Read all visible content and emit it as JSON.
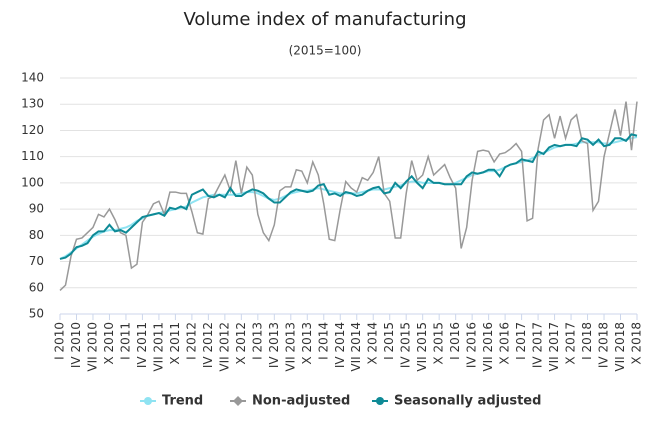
{
  "chart_data": {
    "type": "line",
    "title": "Volume index of manufacturing",
    "subtitle": "(2015=100)",
    "categories": [
      "I 2010",
      null,
      null,
      "IV 2010",
      null,
      null,
      "VII 2010",
      null,
      null,
      "X 2010",
      null,
      null,
      "I 2011",
      null,
      null,
      "IV 2011",
      null,
      null,
      "VII 2011",
      null,
      null,
      "X 2011",
      null,
      null,
      "I 2012",
      null,
      null,
      "IV 2012",
      null,
      null,
      "VII 2012",
      null,
      null,
      "X 2012",
      null,
      null,
      "I 2013",
      null,
      null,
      "IV 2013",
      null,
      null,
      "VII 2013",
      null,
      null,
      "X 2013",
      null,
      null,
      "I 2014",
      null,
      null,
      "IV 2014",
      null,
      null,
      "VII 2014",
      null,
      null,
      "X 2014",
      null,
      null,
      "I 2015",
      null,
      null,
      "IV 2015",
      null,
      null,
      "VII 2015",
      null,
      null,
      "X 2015",
      null,
      null,
      "I 2016",
      null,
      null,
      "IV 2016",
      null,
      null,
      "VII 2016",
      null,
      null,
      "X 2016",
      null,
      null,
      "I 2017",
      null,
      null,
      "IV 2017",
      null,
      null,
      "VII 2017",
      null,
      null,
      "X 2017",
      null,
      null,
      "I 2018",
      null,
      null,
      "IV 2018",
      null,
      null,
      "VII 2018",
      null,
      null,
      "X 2018"
    ],
    "series": [
      {
        "name": "Trend",
        "color": "#8fe3f2",
        "marker": "circle",
        "values": [
          71,
          72,
          73.5,
          75,
          76.5,
          78,
          79.5,
          80.5,
          81.5,
          82,
          82,
          82.5,
          83,
          84,
          85.5,
          86.5,
          87.5,
          88,
          88.5,
          89,
          89.5,
          90,
          90.5,
          91,
          92.5,
          93.5,
          94.5,
          95,
          95.5,
          95.5,
          95.5,
          95.5,
          95.5,
          96,
          96.5,
          96.5,
          96,
          95,
          94,
          93.5,
          94,
          95,
          96,
          96.5,
          97,
          97,
          97.5,
          98,
          97.5,
          97,
          96.5,
          96,
          96,
          96,
          96,
          96.5,
          97,
          97.5,
          97.5,
          97.5,
          98,
          98.5,
          99,
          100,
          100.5,
          100.5,
          100,
          100,
          100,
          100,
          99.5,
          99.5,
          100,
          101,
          102,
          103,
          103.5,
          104,
          104.5,
          104.5,
          105,
          106,
          107,
          107.5,
          108,
          108.5,
          109.5,
          110.5,
          111.5,
          112.5,
          113.5,
          114,
          114.5,
          114.5,
          115,
          115.5,
          115.5,
          115.5,
          115.5,
          115,
          115,
          115.5,
          116,
          116.5,
          117,
          117.5
        ]
      },
      {
        "name": "Non-adjusted",
        "color": "#999999",
        "marker": "diamond",
        "values": [
          59,
          61,
          72,
          78.5,
          79,
          81,
          83,
          88,
          87,
          90,
          86,
          81,
          80,
          67.5,
          69,
          85,
          88,
          92,
          93,
          88,
          96.5,
          96.5,
          96,
          96,
          89,
          81,
          80.5,
          94,
          95,
          99,
          103,
          97,
          108.5,
          96,
          106,
          103,
          88,
          81,
          78,
          84,
          97,
          98.5,
          98.5,
          105,
          104.5,
          100,
          108,
          103,
          92,
          78.5,
          78,
          90,
          100.5,
          98,
          96.5,
          102,
          101,
          104,
          110,
          96,
          93,
          79,
          79,
          96,
          108.5,
          101,
          103,
          110,
          103,
          105,
          107,
          102,
          98,
          75,
          83,
          101,
          112,
          112.5,
          112,
          108,
          111,
          111.5,
          113,
          115,
          112,
          85.5,
          86.5,
          113,
          124,
          126,
          117,
          125.5,
          117,
          124,
          126,
          116,
          115,
          89.5,
          93,
          110,
          119,
          128,
          118,
          131,
          112.5,
          131
        ]
      },
      {
        "name": "Seasonally adjusted",
        "color": "#0e8a96",
        "marker": "circle",
        "values": [
          71,
          71.5,
          73,
          75.5,
          76,
          77,
          80,
          81.5,
          81.5,
          84,
          81.5,
          82,
          81,
          83,
          85,
          87,
          87.5,
          88,
          88.5,
          87.5,
          90.5,
          90,
          91,
          90,
          95.5,
          96.5,
          97.5,
          95,
          94.5,
          95.5,
          94.5,
          98,
          95,
          95,
          96.5,
          97.5,
          97,
          96,
          94,
          92.5,
          92.5,
          94.5,
          96.5,
          97.5,
          97,
          96.5,
          97,
          99,
          99.5,
          95.5,
          96,
          95,
          96.5,
          96,
          95,
          95.5,
          97,
          98,
          98.5,
          96,
          96.5,
          100,
          98,
          100.5,
          102.5,
          100,
          98,
          101.5,
          100,
          100,
          99.5,
          99.5,
          99.5,
          99.5,
          102.5,
          104,
          103.5,
          104,
          105,
          105,
          102.5,
          106,
          107,
          107.5,
          109,
          108.5,
          108,
          112,
          111,
          113.5,
          114.5,
          114,
          114.5,
          114.5,
          114,
          117,
          116.5,
          114.5,
          116.5,
          114,
          114.5,
          117,
          117,
          116,
          118.5,
          118
        ]
      }
    ],
    "ylim": [
      50,
      140
    ],
    "yticks": [
      50,
      60,
      70,
      80,
      90,
      100,
      110,
      120,
      130,
      140
    ],
    "grid": true,
    "legend": "bottom"
  }
}
